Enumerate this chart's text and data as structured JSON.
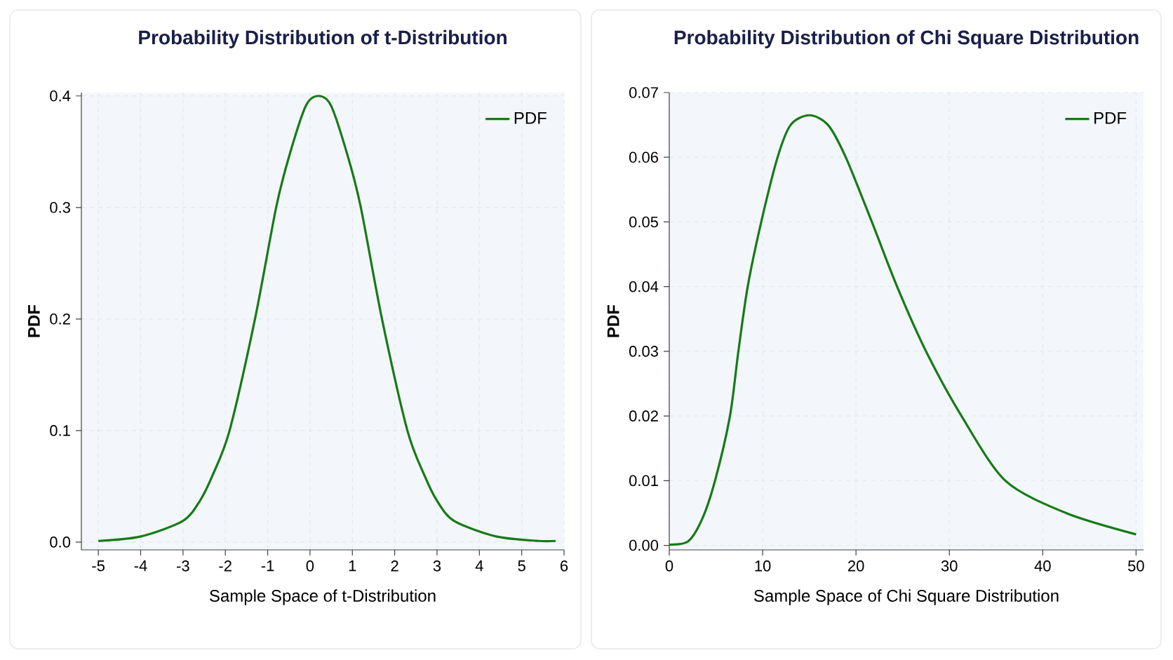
{
  "chart_data": [
    {
      "type": "line",
      "title": "Probability Distribution of t-Distribution",
      "xlabel": "Sample Space of t-Distribution",
      "ylabel": "PDF",
      "x": [
        -5,
        -4,
        -3,
        -2.6,
        -2.3,
        -1.9,
        -1.3,
        -0.8,
        -0.5,
        -0.1,
        0.2,
        0.5,
        0.9,
        1.2,
        1.7,
        2.3,
        2.7,
        3.0,
        3.4,
        4.4,
        5.4,
        5.8
      ],
      "series": [
        {
          "name": "PDF",
          "color": "#177a17",
          "values": [
            0.001,
            0.005,
            0.019,
            0.037,
            0.06,
            0.1,
            0.2,
            0.3,
            0.345,
            0.391,
            0.4,
            0.391,
            0.345,
            0.3,
            0.2,
            0.1,
            0.06,
            0.037,
            0.019,
            0.005,
            0.001,
            0.001
          ]
        }
      ],
      "xlim": [
        -5.4,
        6
      ],
      "ylim": [
        -0.007,
        0.403
      ],
      "xticks": [
        -5,
        -4,
        -3,
        -2,
        -1,
        0,
        1,
        2,
        3,
        4,
        5,
        6
      ],
      "yticks": [
        {
          "value": 0,
          "label": "0.0"
        },
        0.1,
        0.2,
        0.3,
        0.4
      ],
      "grid": true,
      "legend": "top right"
    },
    {
      "type": "line",
      "title": "Probability Distribution of Chi Square Distribution",
      "xlabel": "Sample Space of Chi Square Distribution",
      "ylabel": "PDF",
      "x": [
        0,
        2,
        3.5,
        4.9,
        6.5,
        7.4,
        8.4,
        9.85,
        11.6,
        13,
        15,
        17,
        18.9,
        21.7,
        24.4,
        27.5,
        31.3,
        36,
        42.5,
        50
      ],
      "series": [
        {
          "name": "PDF",
          "color": "#177a17",
          "values": [
            0.0001,
            0.0006,
            0.004,
            0.01,
            0.02,
            0.03,
            0.04,
            0.05,
            0.06,
            0.065,
            0.0665,
            0.065,
            0.06,
            0.05,
            0.04,
            0.03,
            0.02,
            0.01,
            0.005,
            0.0017
          ]
        }
      ],
      "xlim": [
        0,
        50.8
      ],
      "ylim": [
        -0.0007,
        0.07
      ],
      "xticks": [
        0,
        10,
        20,
        30,
        40,
        50
      ],
      "yticks": [
        {
          "value": 0,
          "label": "0.00"
        },
        0.01,
        0.02,
        0.03,
        0.04,
        0.05,
        0.06,
        0.07
      ],
      "grid": true,
      "legend": "top right"
    }
  ]
}
